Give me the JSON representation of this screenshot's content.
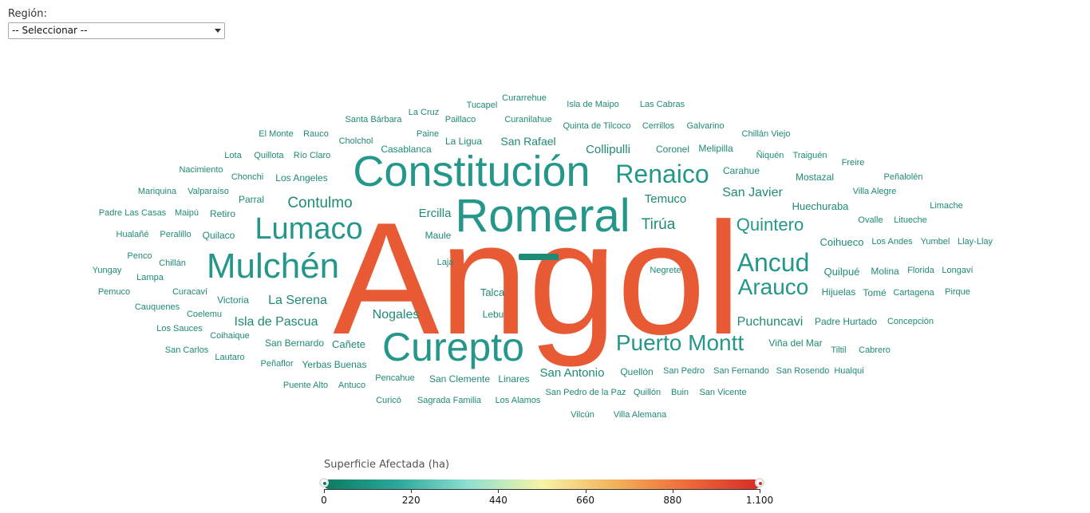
{
  "filter": {
    "label": "Región:",
    "selected": "-- Seleccionar --"
  },
  "legend": {
    "title": "Superficie Afectada (ha)",
    "ticks": [
      "0",
      "220",
      "440",
      "660",
      "880",
      "1.100"
    ],
    "colors": [
      "#0b7a60",
      "#2aa79b",
      "#8fe0d0",
      "#f7f3a8",
      "#f3b25a",
      "#ee6a3a",
      "#d62b27"
    ]
  },
  "words": [
    {
      "text": "Angol",
      "color": "#e85a34"
    },
    {
      "text": "Constitución",
      "color": "#24978a"
    },
    {
      "text": "Romeral",
      "color": "#24978a"
    },
    {
      "text": "Curepto",
      "color": "#24978a"
    },
    {
      "text": "Mulchén",
      "color": "#24978a"
    },
    {
      "text": "Lumaco",
      "color": "#24978a"
    },
    {
      "text": "Renaico",
      "color": "#24978a"
    },
    {
      "text": "Puerto Montt",
      "color": "#24978a"
    },
    {
      "text": "Ancud",
      "color": "#24978a"
    },
    {
      "text": "Arauco",
      "color": "#24978a"
    },
    {
      "text": "Quintero",
      "color": "#24978a"
    },
    {
      "text": "Contulmo",
      "color": "#1f8a76"
    },
    {
      "text": "Tirúa",
      "color": "#1f8a76"
    },
    {
      "text": "San Javier",
      "color": "#1f8a76"
    },
    {
      "text": "La Serena",
      "color": "#1f8a76"
    },
    {
      "text": "Isla de Pascua",
      "color": "#1f8a76"
    },
    {
      "text": "Nogales",
      "color": "#1f8a76"
    },
    {
      "text": "Puchuncavi",
      "color": "#1f8a76"
    },
    {
      "text": "Collipulli",
      "color": "#1f8a76"
    },
    {
      "text": "Temuco",
      "color": "#1f8a76"
    },
    {
      "text": "Ercilla",
      "color": "#1f8a76"
    },
    {
      "text": "San Antonio",
      "color": "#1f8a76"
    },
    {
      "text": "San Rafael",
      "color": "#1f8a76"
    },
    {
      "text": "Huechuraba",
      "color": "#1f8a76"
    },
    {
      "text": "Quilpué",
      "color": "#1f8a76"
    },
    {
      "text": "Coihueco",
      "color": "#1f8a76"
    },
    {
      "text": "Cañete",
      "color": "#1f8a76"
    },
    {
      "text": "Talca",
      "color": "#1f8a76"
    },
    {
      "text": "Victoria",
      "color": "#1f8a76"
    },
    {
      "text": "Hijuelas",
      "color": "#1f8a76"
    },
    {
      "text": "Carahue",
      "color": "#1f8a76"
    },
    {
      "text": "Mostazal",
      "color": "#1f8a76"
    },
    {
      "text": "Coronel",
      "color": "#1f8a76"
    },
    {
      "text": "Melipilla",
      "color": "#1f8a76"
    },
    {
      "text": "Parral",
      "color": "#1f8a76"
    },
    {
      "text": "Los Angeles",
      "color": "#1f8a76"
    },
    {
      "text": "Maule",
      "color": "#1f8a76"
    },
    {
      "text": "Padre Hurtado",
      "color": "#1f8a76"
    },
    {
      "text": "Quellón",
      "color": "#1f8a76"
    },
    {
      "text": "Linares",
      "color": "#1f8a76"
    },
    {
      "text": "Yerbas Buenas",
      "color": "#1f8a76"
    },
    {
      "text": "San Clemente",
      "color": "#1f8a76"
    },
    {
      "text": "Viña del Mar",
      "color": "#1f8a76"
    },
    {
      "text": "Molina",
      "color": "#1f8a76"
    },
    {
      "text": "Tomé",
      "color": "#1f8a76"
    },
    {
      "text": "Florida",
      "color": "#1f8a76"
    },
    {
      "text": "Casablanca",
      "color": "#1f8a76"
    },
    {
      "text": "La Ligua",
      "color": "#1f8a76"
    },
    {
      "text": "Retiro",
      "color": "#1f8a76"
    },
    {
      "text": "Quilaco",
      "color": "#1f8a76"
    },
    {
      "text": "Lebu",
      "color": "#1f8a76"
    },
    {
      "text": "San Bernardo",
      "color": "#1f8a76"
    },
    {
      "text": "Pencahue",
      "color": "#1f8a76"
    },
    {
      "text": "Laja",
      "color": "#1f8a76"
    },
    {
      "text": "Negrete",
      "color": "#1f8a76"
    },
    {
      "text": "Antuco",
      "color": "#1f8a76"
    },
    {
      "text": "Curicó",
      "color": "#1f8a76"
    },
    {
      "text": "Sagrada Familia",
      "color": "#1f8a76"
    },
    {
      "text": "Los Alamos",
      "color": "#1f8a76"
    },
    {
      "text": "San Pedro de la Paz",
      "color": "#1f8a76"
    },
    {
      "text": "Quillón",
      "color": "#1f8a76"
    },
    {
      "text": "Buin",
      "color": "#1f8a76"
    },
    {
      "text": "San Vicente",
      "color": "#1f8a76"
    },
    {
      "text": "Vilcún",
      "color": "#1f8a76"
    },
    {
      "text": "Villa Alemana",
      "color": "#1f8a76"
    },
    {
      "text": "San Pedro",
      "color": "#1f8a76"
    },
    {
      "text": "San Fernando",
      "color": "#1f8a76"
    },
    {
      "text": "San Rosendo",
      "color": "#1f8a76"
    },
    {
      "text": "Hualqui",
      "color": "#1f8a76"
    },
    {
      "text": "Puente Alto",
      "color": "#1f8a76"
    },
    {
      "text": "Peñaflor",
      "color": "#1f8a76"
    },
    {
      "text": "Tucapel",
      "color": "#1f8a76"
    },
    {
      "text": "Curarrehue",
      "color": "#1f8a76"
    },
    {
      "text": "Isla de Maipo",
      "color": "#1f8a76"
    },
    {
      "text": "Las Cabras",
      "color": "#1f8a76"
    },
    {
      "text": "La Cruz",
      "color": "#1f8a76"
    },
    {
      "text": "Santa Bárbara",
      "color": "#1f8a76"
    },
    {
      "text": "Paillaco",
      "color": "#1f8a76"
    },
    {
      "text": "Curanilahue",
      "color": "#1f8a76"
    },
    {
      "text": "Quinta de Tilcoco",
      "color": "#1f8a76"
    },
    {
      "text": "Cerrillos",
      "color": "#1f8a76"
    },
    {
      "text": "Galvarino",
      "color": "#1f8a76"
    },
    {
      "text": "El Monte",
      "color": "#1f8a76"
    },
    {
      "text": "Rauco",
      "color": "#1f8a76"
    },
    {
      "text": "Paine",
      "color": "#1f8a76"
    },
    {
      "text": "Chillán Viejo",
      "color": "#1f8a76"
    },
    {
      "text": "Cholchol",
      "color": "#1f8a76"
    },
    {
      "text": "Lota",
      "color": "#1f8a76"
    },
    {
      "text": "Quillota",
      "color": "#1f8a76"
    },
    {
      "text": "Río Claro",
      "color": "#1f8a76"
    },
    {
      "text": "Ñiquén",
      "color": "#1f8a76"
    },
    {
      "text": "Traiguén",
      "color": "#1f8a76"
    },
    {
      "text": "Freire",
      "color": "#1f8a76"
    },
    {
      "text": "Nacimiento",
      "color": "#1f8a76"
    },
    {
      "text": "Chonchi",
      "color": "#1f8a76"
    },
    {
      "text": "Peñalolén",
      "color": "#1f8a76"
    },
    {
      "text": "Mariquina",
      "color": "#1f8a76"
    },
    {
      "text": "Valparaíso",
      "color": "#1f8a76"
    },
    {
      "text": "Villa Alegre",
      "color": "#1f8a76"
    },
    {
      "text": "Limache",
      "color": "#1f8a76"
    },
    {
      "text": "Padre Las Casas",
      "color": "#1f8a76"
    },
    {
      "text": "Maipú",
      "color": "#1f8a76"
    },
    {
      "text": "Ovalle",
      "color": "#1f8a76"
    },
    {
      "text": "Litueche",
      "color": "#1f8a76"
    },
    {
      "text": "Hualañé",
      "color": "#1f8a76"
    },
    {
      "text": "Peralillo",
      "color": "#1f8a76"
    },
    {
      "text": "Los Andes",
      "color": "#1f8a76"
    },
    {
      "text": "Yumbel",
      "color": "#1f8a76"
    },
    {
      "text": "Llay-Llay",
      "color": "#1f8a76"
    },
    {
      "text": "Penco",
      "color": "#1f8a76"
    },
    {
      "text": "Chillán",
      "color": "#1f8a76"
    },
    {
      "text": "Yungay",
      "color": "#1f8a76"
    },
    {
      "text": "Lampa",
      "color": "#1f8a76"
    },
    {
      "text": "Longaví",
      "color": "#1f8a76"
    },
    {
      "text": "Pemuco",
      "color": "#1f8a76"
    },
    {
      "text": "Curacaví",
      "color": "#1f8a76"
    },
    {
      "text": "Cartagena",
      "color": "#1f8a76"
    },
    {
      "text": "Pirque",
      "color": "#1f8a76"
    },
    {
      "text": "Cauquenes",
      "color": "#1f8a76"
    },
    {
      "text": "Coelemu",
      "color": "#1f8a76"
    },
    {
      "text": "Concepción",
      "color": "#1f8a76"
    },
    {
      "text": "Los Sauces",
      "color": "#1f8a76"
    },
    {
      "text": "Coihaique",
      "color": "#1f8a76"
    },
    {
      "text": "San Carlos",
      "color": "#1f8a76"
    },
    {
      "text": "Lautaro",
      "color": "#1f8a76"
    },
    {
      "text": "Tiltil",
      "color": "#1f8a76"
    },
    {
      "text": "Cabrero",
      "color": "#1f8a76"
    }
  ]
}
